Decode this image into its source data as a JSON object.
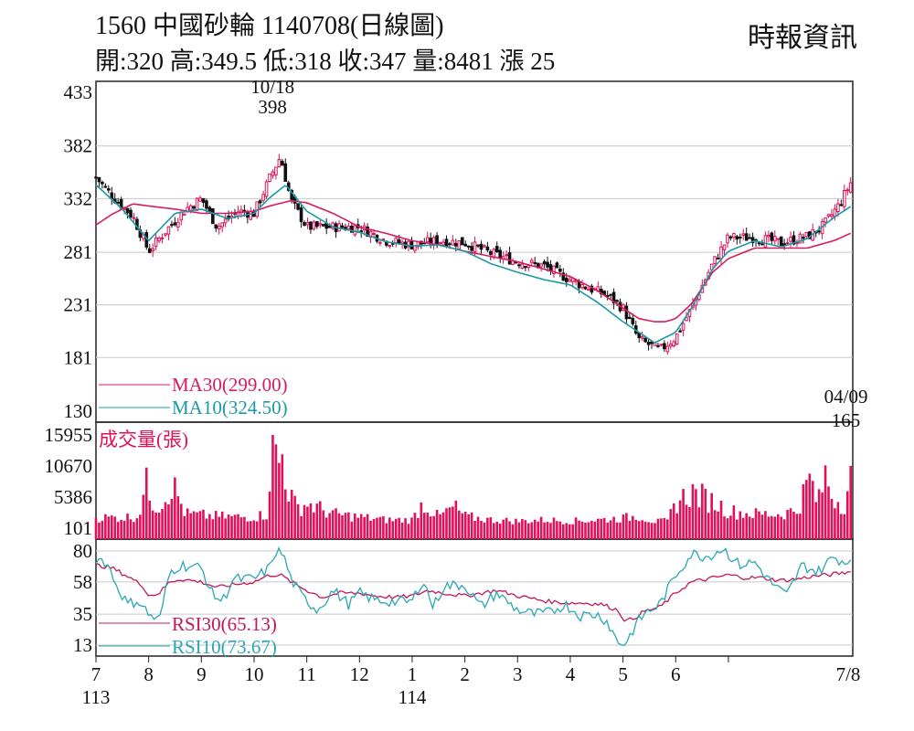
{
  "header": {
    "title": "1560  中國砂輪 1140708(日線圖)",
    "ohlc": "開:320 高:349.5 低:318 收:347 量:8481 漲 25",
    "source": "時報資訊"
  },
  "colors": {
    "up": "#e0105a",
    "down": "#111111",
    "ma30": "#d81b60",
    "ma10": "#1a9aa6",
    "volume": "#e0105a",
    "rsi30": "#c2185b",
    "rsi10": "#2aa7b4",
    "grid": "#c8c8c8",
    "frame": "#222222"
  },
  "chart_data": [
    {
      "type": "candlestick",
      "panel": "price",
      "ylim": [
        130,
        433
      ],
      "yticks": [
        "433",
        "382",
        "332",
        "281",
        "231",
        "181",
        "130"
      ],
      "annotations": [
        {
          "date": "10/18",
          "value": "398",
          "ref_month": 10.35
        },
        {
          "date": "04/09",
          "value": "165",
          "ref_month": 21.3
        }
      ],
      "legend": [
        {
          "label": "MA30(299.00)",
          "key": "ma30"
        },
        {
          "label": "MA10(324.50)",
          "key": "ma10"
        }
      ],
      "keypoints_close": [
        [
          7.0,
          352
        ],
        [
          7.3,
          335
        ],
        [
          7.7,
          315
        ],
        [
          8.0,
          282
        ],
        [
          8.3,
          300
        ],
        [
          8.7,
          322
        ],
        [
          9.0,
          332
        ],
        [
          9.3,
          305
        ],
        [
          9.7,
          320
        ],
        [
          10.0,
          318
        ],
        [
          10.3,
          352
        ],
        [
          10.5,
          372
        ],
        [
          10.7,
          330
        ],
        [
          11.0,
          305
        ],
        [
          11.5,
          305
        ],
        [
          12.0,
          305
        ],
        [
          12.5,
          292
        ],
        [
          13.0,
          288
        ],
        [
          13.5,
          292
        ],
        [
          14.0,
          290
        ],
        [
          14.5,
          280
        ],
        [
          15.0,
          272
        ],
        [
          15.5,
          268
        ],
        [
          16.0,
          255
        ],
        [
          16.3,
          248
        ],
        [
          16.7,
          240
        ],
        [
          17.0,
          228
        ],
        [
          17.3,
          198
        ],
        [
          17.7,
          188
        ],
        [
          18.0,
          200
        ],
        [
          18.3,
          228
        ],
        [
          18.7,
          270
        ],
        [
          19.0,
          295
        ],
        [
          19.5,
          295
        ],
        [
          20.0,
          290
        ],
        [
          20.5,
          296
        ],
        [
          20.8,
          306
        ],
        [
          21.1,
          326
        ],
        [
          21.32,
          347
        ]
      ],
      "keypoints_ma10": [
        [
          7.0,
          345
        ],
        [
          7.5,
          322
        ],
        [
          8.0,
          292
        ],
        [
          8.5,
          318
        ],
        [
          9.0,
          322
        ],
        [
          9.5,
          313
        ],
        [
          10.0,
          318
        ],
        [
          10.3,
          333
        ],
        [
          10.6,
          345
        ],
        [
          11.0,
          320
        ],
        [
          11.5,
          305
        ],
        [
          12.0,
          300
        ],
        [
          12.5,
          291
        ],
        [
          13.0,
          287
        ],
        [
          13.5,
          288
        ],
        [
          14.0,
          282
        ],
        [
          14.5,
          270
        ],
        [
          15.0,
          262
        ],
        [
          15.5,
          255
        ],
        [
          16.0,
          250
        ],
        [
          16.5,
          234
        ],
        [
          17.0,
          215
        ],
        [
          17.3,
          205
        ],
        [
          17.6,
          195
        ],
        [
          18.0,
          205
        ],
        [
          18.3,
          228
        ],
        [
          18.7,
          265
        ],
        [
          19.0,
          282
        ],
        [
          19.5,
          292
        ],
        [
          20.0,
          286
        ],
        [
          20.5,
          294
        ],
        [
          21.0,
          314
        ],
        [
          21.32,
          324.5
        ]
      ],
      "keypoints_ma30": [
        [
          7.0,
          307
        ],
        [
          7.3,
          317
        ],
        [
          7.7,
          327
        ],
        [
          8.0,
          325
        ],
        [
          8.5,
          322
        ],
        [
          9.0,
          318
        ],
        [
          9.5,
          318
        ],
        [
          10.0,
          320
        ],
        [
          10.3,
          325
        ],
        [
          10.7,
          330
        ],
        [
          11.0,
          328
        ],
        [
          11.5,
          318
        ],
        [
          12.0,
          305
        ],
        [
          12.5,
          299
        ],
        [
          13.0,
          292
        ],
        [
          13.5,
          288
        ],
        [
          14.0,
          282
        ],
        [
          14.5,
          277
        ],
        [
          15.0,
          272
        ],
        [
          15.5,
          265
        ],
        [
          16.0,
          258
        ],
        [
          16.5,
          245
        ],
        [
          17.0,
          228
        ],
        [
          17.3,
          218
        ],
        [
          17.6,
          215
        ],
        [
          17.8,
          215
        ],
        [
          18.0,
          218
        ],
        [
          18.3,
          232
        ],
        [
          18.7,
          262
        ],
        [
          19.0,
          275
        ],
        [
          19.5,
          285
        ],
        [
          20.0,
          285
        ],
        [
          20.5,
          285
        ],
        [
          21.0,
          292
        ],
        [
          21.32,
          299
        ]
      ]
    },
    {
      "type": "bar",
      "panel": "volume",
      "title": "成交量(張)",
      "ylim": [
        0,
        15955
      ],
      "yticks": [
        "15955",
        "10670",
        "5386",
        "101"
      ],
      "keypoints_volume": [
        [
          7.0,
          1900
        ],
        [
          7.5,
          1900
        ],
        [
          7.8,
          2100
        ],
        [
          7.95,
          7500
        ],
        [
          8.05,
          5200
        ],
        [
          8.15,
          3800
        ],
        [
          8.3,
          5000
        ],
        [
          8.4,
          7400
        ],
        [
          8.5,
          6600
        ],
        [
          8.7,
          2500
        ],
        [
          9.0,
          2300
        ],
        [
          9.3,
          2100
        ],
        [
          9.7,
          2000
        ],
        [
          10.0,
          2000
        ],
        [
          10.25,
          2500
        ],
        [
          10.35,
          15955
        ],
        [
          10.45,
          10670
        ],
        [
          10.55,
          12800
        ],
        [
          10.65,
          6600
        ],
        [
          10.8,
          3500
        ],
        [
          11.0,
          4300
        ],
        [
          11.5,
          2500
        ],
        [
          12.0,
          2000
        ],
        [
          12.5,
          1500
        ],
        [
          13.0,
          1500
        ],
        [
          13.2,
          4400
        ],
        [
          13.5,
          2000
        ],
        [
          13.8,
          3700
        ],
        [
          14.0,
          2100
        ],
        [
          14.5,
          1500
        ],
        [
          15.0,
          1300
        ],
        [
          15.5,
          1500
        ],
        [
          16.0,
          1300
        ],
        [
          16.5,
          1500
        ],
        [
          17.0,
          1800
        ],
        [
          17.3,
          2200
        ],
        [
          17.6,
          1200
        ],
        [
          17.85,
          1300
        ],
        [
          18.0,
          4400
        ],
        [
          18.3,
          6200
        ],
        [
          18.6,
          5000
        ],
        [
          18.8,
          4200
        ],
        [
          19.0,
          3000
        ],
        [
          19.5,
          2500
        ],
        [
          20.0,
          2500
        ],
        [
          20.3,
          3200
        ],
        [
          20.55,
          8600
        ],
        [
          20.7,
          4000
        ],
        [
          20.85,
          9500
        ],
        [
          20.95,
          6000
        ],
        [
          21.1,
          4600
        ],
        [
          21.2,
          4300
        ],
        [
          21.3,
          8481
        ]
      ]
    },
    {
      "type": "line",
      "panel": "rsi",
      "ylim": [
        13,
        80
      ],
      "yticks": [
        "80",
        "58",
        "35",
        "13"
      ],
      "legend": [
        {
          "label": "RSI30(65.13)",
          "key": "rsi30"
        },
        {
          "label": "RSI10(73.67)",
          "key": "rsi10"
        }
      ],
      "keypoints_rsi30": [
        [
          7.0,
          70
        ],
        [
          7.3,
          68
        ],
        [
          7.6,
          62
        ],
        [
          7.9,
          55
        ],
        [
          8.0,
          48
        ],
        [
          8.2,
          50
        ],
        [
          8.4,
          58
        ],
        [
          8.6,
          60
        ],
        [
          9.0,
          58
        ],
        [
          9.3,
          54
        ],
        [
          9.6,
          56
        ],
        [
          10.0,
          58
        ],
        [
          10.3,
          63
        ],
        [
          10.5,
          63
        ],
        [
          10.7,
          58
        ],
        [
          11.0,
          52
        ],
        [
          11.3,
          47
        ],
        [
          11.6,
          50
        ],
        [
          12.0,
          50
        ],
        [
          12.3,
          48
        ],
        [
          12.7,
          47
        ],
        [
          13.0,
          48
        ],
        [
          13.3,
          52
        ],
        [
          13.6,
          50
        ],
        [
          14.0,
          48
        ],
        [
          14.3,
          50
        ],
        [
          14.6,
          52
        ],
        [
          15.0,
          48
        ],
        [
          15.3,
          46
        ],
        [
          15.6,
          44
        ],
        [
          16.0,
          43
        ],
        [
          16.3,
          43
        ],
        [
          16.6,
          42
        ],
        [
          16.9,
          38
        ],
        [
          17.05,
          30
        ],
        [
          17.2,
          32
        ],
        [
          17.4,
          37
        ],
        [
          17.7,
          40
        ],
        [
          18.0,
          50
        ],
        [
          18.3,
          58
        ],
        [
          18.6,
          60
        ],
        [
          19.0,
          63
        ],
        [
          19.3,
          61
        ],
        [
          19.6,
          61
        ],
        [
          20.0,
          59
        ],
        [
          20.3,
          60
        ],
        [
          20.6,
          62
        ],
        [
          20.9,
          63
        ],
        [
          21.1,
          64
        ],
        [
          21.32,
          65.13
        ]
      ],
      "keypoints_rsi10": [
        [
          7.0,
          75
        ],
        [
          7.2,
          72
        ],
        [
          7.4,
          55
        ],
        [
          7.6,
          42
        ],
        [
          7.8,
          45
        ],
        [
          8.0,
          35
        ],
        [
          8.2,
          30
        ],
        [
          8.4,
          65
        ],
        [
          8.6,
          70
        ],
        [
          9.0,
          68
        ],
        [
          9.2,
          50
        ],
        [
          9.4,
          44
        ],
        [
          9.6,
          60
        ],
        [
          10.0,
          60
        ],
        [
          10.3,
          68
        ],
        [
          10.4,
          80
        ],
        [
          10.55,
          78
        ],
        [
          10.7,
          60
        ],
        [
          10.9,
          48
        ],
        [
          11.2,
          38
        ],
        [
          11.5,
          52
        ],
        [
          11.8,
          42
        ],
        [
          12.0,
          50
        ],
        [
          12.3,
          45
        ],
        [
          12.6,
          44
        ],
        [
          13.0,
          44
        ],
        [
          13.2,
          60
        ],
        [
          13.4,
          40
        ],
        [
          13.6,
          55
        ],
        [
          14.0,
          56
        ],
        [
          14.3,
          40
        ],
        [
          14.6,
          50
        ],
        [
          15.0,
          38
        ],
        [
          15.3,
          35
        ],
        [
          15.6,
          36
        ],
        [
          15.9,
          42
        ],
        [
          16.2,
          34
        ],
        [
          16.5,
          35
        ],
        [
          16.7,
          30
        ],
        [
          16.9,
          15
        ],
        [
          17.05,
          14
        ],
        [
          17.25,
          28
        ],
        [
          17.4,
          35
        ],
        [
          17.7,
          42
        ],
        [
          18.0,
          63
        ],
        [
          18.3,
          78
        ],
        [
          18.6,
          76
        ],
        [
          18.9,
          82
        ],
        [
          19.2,
          70
        ],
        [
          19.5,
          72
        ],
        [
          19.8,
          58
        ],
        [
          20.1,
          48
        ],
        [
          20.4,
          70
        ],
        [
          20.7,
          65
        ],
        [
          21.0,
          76
        ],
        [
          21.2,
          72
        ],
        [
          21.32,
          73.67
        ]
      ]
    }
  ],
  "x_axis": {
    "labels": [
      {
        "text": "7",
        "month": 7.0
      },
      {
        "text": "8",
        "month": 8.0
      },
      {
        "text": "9",
        "month": 9.0
      },
      {
        "text": "10",
        "month": 10.0
      },
      {
        "text": "11",
        "month": 11.0
      },
      {
        "text": "12",
        "month": 12.0
      },
      {
        "text": "1",
        "month": 13.0
      },
      {
        "text": "2",
        "month": 14.0
      },
      {
        "text": "3",
        "month": 15.0
      },
      {
        "text": "4",
        "month": 16.0
      },
      {
        "text": "5",
        "month": 17.0
      },
      {
        "text": "6",
        "month": 18.0
      },
      {
        "text": "7/8",
        "month": 19.0
      }
    ],
    "year_labels": [
      {
        "text": "113",
        "month": 7.0
      },
      {
        "text": "114",
        "month": 13.0
      }
    ]
  }
}
